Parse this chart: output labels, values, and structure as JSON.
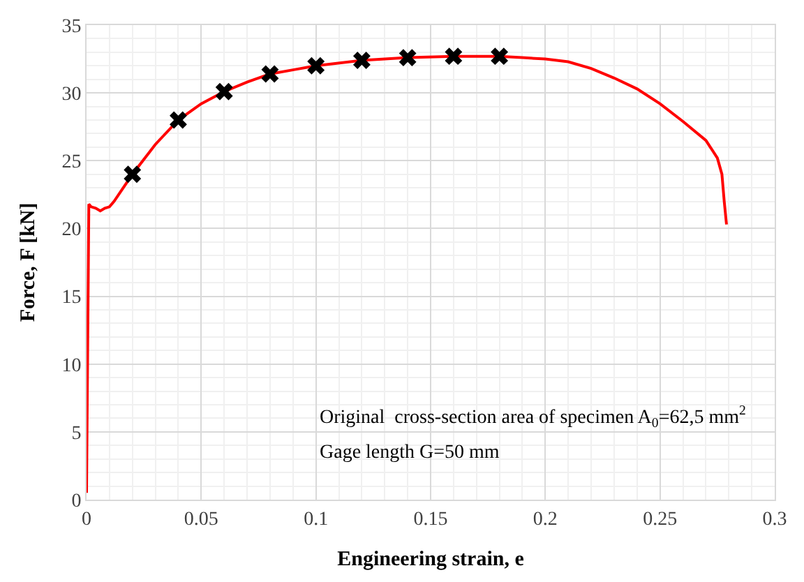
{
  "chart_data": {
    "type": "line",
    "xlabel": "Engineering strain, e",
    "ylabel": "Force, F [kN]",
    "xlim": [
      0,
      0.3
    ],
    "xticks": [
      0,
      0.05,
      0.1,
      0.15,
      0.2,
      0.25,
      0.3
    ],
    "ylim": [
      0,
      35
    ],
    "yticks": [
      0,
      5,
      10,
      15,
      20,
      25,
      30,
      35
    ],
    "grid": true,
    "series": [
      {
        "color": "#ff0000",
        "marker": "none",
        "line_style": "solid",
        "x": [
          0,
          0.001,
          0.002,
          0.004,
          0.006,
          0.008,
          0.01,
          0.012,
          0.016,
          0.02,
          0.03,
          0.04,
          0.05,
          0.06,
          0.07,
          0.08,
          0.09,
          0.1,
          0.12,
          0.14,
          0.16,
          0.18,
          0.19,
          0.2,
          0.21,
          0.22,
          0.23,
          0.24,
          0.25,
          0.26,
          0.27,
          0.275,
          0.277,
          0.278,
          0.279
        ],
        "values": [
          0.5,
          21.8,
          21.6,
          21.5,
          21.3,
          21.5,
          21.6,
          22.0,
          23.0,
          24.0,
          26.2,
          28.0,
          29.2,
          30.1,
          30.8,
          31.4,
          31.7,
          32.0,
          32.4,
          32.6,
          32.7,
          32.7,
          32.6,
          32.5,
          32.3,
          31.8,
          31.1,
          30.3,
          29.2,
          27.9,
          26.5,
          25.2,
          24.0,
          22.0,
          20.3
        ]
      },
      {
        "type": "scatter",
        "color": "#000000",
        "marker": "cross",
        "x": [
          0.02,
          0.04,
          0.06,
          0.08,
          0.1,
          0.12,
          0.14,
          0.16,
          0.18
        ],
        "values": [
          24.0,
          28.0,
          30.1,
          31.4,
          32.0,
          32.4,
          32.6,
          32.7,
          32.7
        ]
      }
    ],
    "annotations": [
      "Original  cross-section area of specimen A$_{0}$=62,5 mm$^{2}$",
      "Gage length G=50 mm"
    ]
  }
}
